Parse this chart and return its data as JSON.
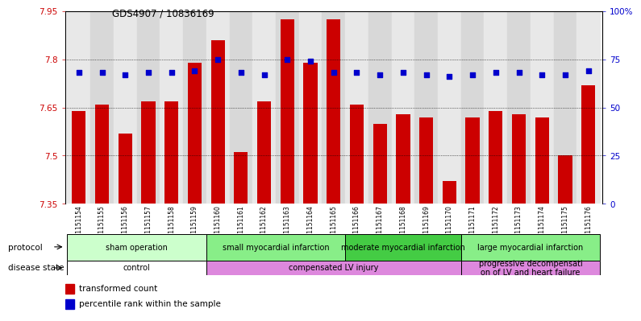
{
  "title": "GDS4907 / 10836169",
  "samples": [
    "GSM1151154",
    "GSM1151155",
    "GSM1151156",
    "GSM1151157",
    "GSM1151158",
    "GSM1151159",
    "GSM1151160",
    "GSM1151161",
    "GSM1151162",
    "GSM1151163",
    "GSM1151164",
    "GSM1151165",
    "GSM1151166",
    "GSM1151167",
    "GSM1151168",
    "GSM1151169",
    "GSM1151170",
    "GSM1151171",
    "GSM1151172",
    "GSM1151173",
    "GSM1151174",
    "GSM1151175",
    "GSM1151176"
  ],
  "transformed_count": [
    7.64,
    7.66,
    7.57,
    7.67,
    7.67,
    7.79,
    7.86,
    7.51,
    7.67,
    7.925,
    7.79,
    7.925,
    7.66,
    7.6,
    7.63,
    7.62,
    7.42,
    7.62,
    7.64,
    7.63,
    7.62,
    7.5,
    7.72
  ],
  "percentile_rank": [
    68,
    68,
    67,
    68,
    68,
    69,
    75,
    68,
    67,
    75,
    74,
    68,
    68,
    67,
    68,
    67,
    66,
    67,
    68,
    68,
    67,
    67,
    69
  ],
  "ylim_left": [
    7.35,
    7.95
  ],
  "ylim_right": [
    0,
    100
  ],
  "yticks_left": [
    7.35,
    7.5,
    7.65,
    7.8,
    7.95
  ],
  "ytick_labels_left": [
    "7.35",
    "7.5",
    "7.65",
    "7.8",
    "7.95"
  ],
  "yticks_right": [
    0,
    25,
    50,
    75,
    100
  ],
  "ytick_labels_right": [
    "0",
    "25",
    "50",
    "75",
    "100%"
  ],
  "bar_color": "#cc0000",
  "dot_color": "#0000cc",
  "bg_color_odd": "#d8d8d8",
  "bg_color_even": "#e8e8e8",
  "label_area_color": "#c0c0c0",
  "protocol_groups": [
    {
      "label": "sham operation",
      "start": 0,
      "end": 5,
      "color": "#ccffcc"
    },
    {
      "label": "small myocardial infarction",
      "start": 6,
      "end": 11,
      "color": "#88ee88"
    },
    {
      "label": "moderate myocardial infarction",
      "start": 12,
      "end": 16,
      "color": "#44cc44"
    },
    {
      "label": "large myocardial infarction",
      "start": 17,
      "end": 22,
      "color": "#88ee88"
    }
  ],
  "disease_groups": [
    {
      "label": "control",
      "start": 0,
      "end": 5,
      "color": "#ffffff"
    },
    {
      "label": "compensated LV injury",
      "start": 6,
      "end": 16,
      "color": "#dd88dd"
    },
    {
      "label": "progressive decompensati\non of LV and heart failure",
      "start": 17,
      "end": 22,
      "color": "#dd88dd"
    }
  ],
  "legend_text1": "transformed count",
  "legend_text2": "percentile rank within the sample",
  "fig_width": 7.84,
  "fig_height": 3.93
}
